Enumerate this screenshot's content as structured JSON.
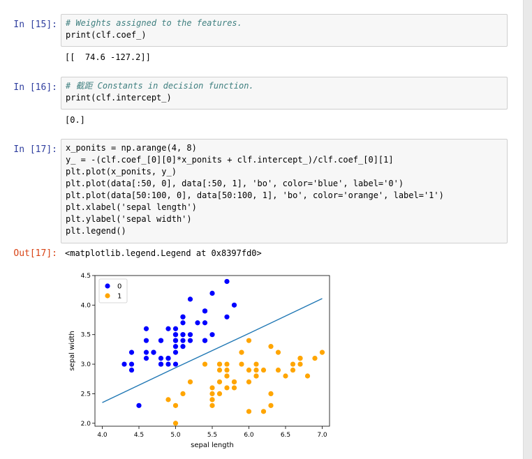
{
  "cells": [
    {
      "prompt": "In  [15]:",
      "comment": "# Weights assigned to the features.",
      "code": "print(clf.coef_)",
      "output": "[[  74.6 -127.2]]"
    },
    {
      "prompt": "In  [16]:",
      "comment": "# 截距 Constants in decision function.",
      "code": "print(clf.intercept_)",
      "output": "[0.]"
    },
    {
      "prompt": "In  [17]:",
      "lines": [
        "x_ponits = np.arange(4, 8)",
        "y_ = -(clf.coef_[0][0]*x_ponits + clf.intercept_)/clf.coef_[0][1]",
        "plt.plot(x_ponits, y_)",
        "plt.plot(data[:50, 0], data[:50, 1], 'bo', color='blue', label='0')",
        "plt.plot(data[50:100, 0], data[50:100, 1], 'bo', color='orange', label='1')",
        "plt.xlabel('sepal length')",
        "plt.ylabel('sepal width')",
        "plt.legend()"
      ],
      "out_prompt": "Out[17]:",
      "output": "<matplotlib.legend.Legend at 0x8397fd0>"
    }
  ],
  "chart_data": {
    "type": "scatter",
    "xlabel": "sepal length",
    "ylabel": "sepal width",
    "xlim": [
      3.9,
      7.1
    ],
    "ylim": [
      1.95,
      4.5
    ],
    "xticks": [
      "4.0",
      "4.5",
      "5.0",
      "5.5",
      "6.0",
      "6.5",
      "7.0"
    ],
    "yticks": [
      "2.0",
      "2.5",
      "3.0",
      "3.5",
      "4.0",
      "4.5"
    ],
    "grid": false,
    "legend_position": "top-left",
    "line": {
      "x": [
        4,
        5,
        6,
        7
      ],
      "y": [
        2.35,
        2.94,
        3.52,
        4.11
      ],
      "color": "#1f77b4"
    },
    "series": [
      {
        "name": "0",
        "color": "#0000ff",
        "points": [
          [
            5.1,
            3.5
          ],
          [
            4.9,
            3.0
          ],
          [
            4.7,
            3.2
          ],
          [
            4.6,
            3.1
          ],
          [
            5.0,
            3.6
          ],
          [
            5.4,
            3.9
          ],
          [
            4.6,
            3.4
          ],
          [
            5.0,
            3.4
          ],
          [
            4.4,
            2.9
          ],
          [
            4.9,
            3.1
          ],
          [
            5.4,
            3.7
          ],
          [
            4.8,
            3.4
          ],
          [
            4.8,
            3.0
          ],
          [
            4.3,
            3.0
          ],
          [
            5.8,
            4.0
          ],
          [
            5.7,
            4.4
          ],
          [
            5.4,
            3.9
          ],
          [
            5.1,
            3.5
          ],
          [
            5.7,
            3.8
          ],
          [
            5.1,
            3.8
          ],
          [
            5.4,
            3.4
          ],
          [
            5.1,
            3.7
          ],
          [
            4.6,
            3.6
          ],
          [
            5.1,
            3.3
          ],
          [
            4.8,
            3.4
          ],
          [
            5.0,
            3.0
          ],
          [
            5.0,
            3.4
          ],
          [
            5.2,
            3.5
          ],
          [
            5.2,
            3.4
          ],
          [
            4.7,
            3.2
          ],
          [
            4.8,
            3.1
          ],
          [
            5.4,
            3.4
          ],
          [
            5.2,
            4.1
          ],
          [
            5.5,
            4.2
          ],
          [
            4.9,
            3.1
          ],
          [
            5.0,
            3.2
          ],
          [
            5.5,
            3.5
          ],
          [
            4.9,
            3.6
          ],
          [
            4.4,
            3.0
          ],
          [
            5.1,
            3.4
          ],
          [
            5.0,
            3.5
          ],
          [
            4.5,
            2.3
          ],
          [
            4.4,
            3.2
          ],
          [
            5.0,
            3.5
          ],
          [
            5.1,
            3.8
          ],
          [
            4.8,
            3.0
          ],
          [
            5.1,
            3.8
          ],
          [
            4.6,
            3.2
          ],
          [
            5.3,
            3.7
          ],
          [
            5.0,
            3.3
          ]
        ]
      },
      {
        "name": "1",
        "color": "#ffa500",
        "points": [
          [
            7.0,
            3.2
          ],
          [
            6.4,
            3.2
          ],
          [
            6.9,
            3.1
          ],
          [
            5.5,
            2.3
          ],
          [
            6.5,
            2.8
          ],
          [
            5.7,
            2.8
          ],
          [
            6.3,
            3.3
          ],
          [
            4.9,
            2.4
          ],
          [
            6.6,
            2.9
          ],
          [
            5.2,
            2.7
          ],
          [
            5.0,
            2.0
          ],
          [
            5.9,
            3.0
          ],
          [
            6.0,
            2.2
          ],
          [
            6.1,
            2.9
          ],
          [
            5.6,
            2.9
          ],
          [
            6.7,
            3.1
          ],
          [
            5.6,
            3.0
          ],
          [
            5.8,
            2.7
          ],
          [
            6.2,
            2.2
          ],
          [
            5.6,
            2.5
          ],
          [
            5.9,
            3.2
          ],
          [
            6.1,
            2.8
          ],
          [
            6.3,
            2.5
          ],
          [
            6.1,
            2.8
          ],
          [
            6.4,
            2.9
          ],
          [
            6.6,
            3.0
          ],
          [
            6.8,
            2.8
          ],
          [
            6.7,
            3.0
          ],
          [
            6.0,
            2.9
          ],
          [
            5.7,
            2.6
          ],
          [
            5.5,
            2.4
          ],
          [
            5.5,
            2.4
          ],
          [
            5.8,
            2.7
          ],
          [
            6.0,
            2.7
          ],
          [
            5.4,
            3.0
          ],
          [
            6.0,
            3.4
          ],
          [
            6.7,
            3.1
          ],
          [
            6.3,
            2.3
          ],
          [
            5.6,
            3.0
          ],
          [
            5.5,
            2.5
          ],
          [
            5.5,
            2.6
          ],
          [
            6.1,
            3.0
          ],
          [
            5.8,
            2.6
          ],
          [
            5.0,
            2.3
          ],
          [
            5.6,
            2.7
          ],
          [
            5.7,
            3.0
          ],
          [
            5.7,
            2.9
          ],
          [
            6.2,
            2.9
          ],
          [
            5.1,
            2.5
          ],
          [
            5.7,
            2.8
          ]
        ]
      }
    ]
  }
}
